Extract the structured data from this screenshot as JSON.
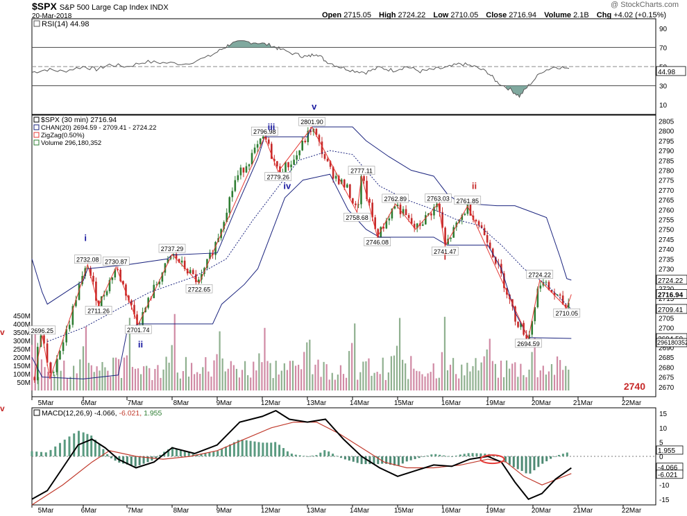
{
  "header": {
    "symbol": "$SPX",
    "name": "S&P 500 Large Cap Index",
    "exchange": "INDX",
    "date": "20-Mar-2018",
    "open_label": "Open",
    "open": "2715.05",
    "high_label": "High",
    "high": "2724.22",
    "low_label": "Low",
    "low": "2710.05",
    "close_label": "Close",
    "close": "2716.94",
    "volume_label": "Volume",
    "volume": "2.1B",
    "chg_label": "Chg",
    "chg": "+4.02 (+0.15%)",
    "brand": "@ StockCharts.com"
  },
  "rsi_panel": {
    "label": "RSI(14) 44.98",
    "current": "44.98",
    "ticks": [
      "90",
      "70",
      "50",
      "30",
      "10"
    ],
    "ylim": [
      0,
      100
    ],
    "overbought": 70,
    "oversold": 30
  },
  "price_panel": {
    "legend": {
      "title": "$SPX (30 min) 2716.94",
      "chan": "CHAN(20) 2694.59 - 2709.41 - 2724.22",
      "zigzag": "ZigZag(0.50%)",
      "volume": "Volume 296,180,352"
    },
    "price_ticks": [
      "2805",
      "2800",
      "2795",
      "2790",
      "2785",
      "2780",
      "2775",
      "2770",
      "2765",
      "2760",
      "2755",
      "2750",
      "2745",
      "2740",
      "2735",
      "2730",
      "2725",
      "2720",
      "2715",
      "2710",
      "2705",
      "2700",
      "2695",
      "2690",
      "2685",
      "2680",
      "2675",
      "2670"
    ],
    "ylim": [
      2665,
      2808
    ],
    "volume_ticks": [
      "450M",
      "400M",
      "350M",
      "300M",
      "250M",
      "200M",
      "150M",
      "100M",
      "50M"
    ],
    "right_labels": {
      "top": "2724.22",
      "close": "2716.94",
      "mid": "2709.41",
      "bottom": "2694.59",
      "volume": "296180352"
    },
    "annotation_2740": "2740",
    "side_marker": "v"
  },
  "macd_panel": {
    "label": "MACD(12,26,9) -4.066, -6.021, 1.955",
    "label_parts": {
      "name": "MACD(12,26,9)",
      "macd": "-4.066",
      "signal": "-6.021",
      "hist": "1.955"
    },
    "ticks": [
      "15",
      "10",
      "5",
      "0",
      "-5",
      "-10",
      "-15"
    ],
    "ylim": [
      -17,
      17
    ],
    "right_labels": {
      "hist": "1.955",
      "macd": "-4.066",
      "signal": "-6.021"
    },
    "side_marker": "v"
  },
  "x_axis": {
    "dates": [
      "5Mar",
      "6Mar",
      "7Mar",
      "8Mar",
      "9Mar",
      "12Mar",
      "13Mar",
      "14Mar",
      "15Mar",
      "16Mar",
      "19Mar",
      "20Mar",
      "21Mar",
      "22Mar"
    ]
  },
  "colors": {
    "up": "#2e7d32",
    "down": "#c62828",
    "channel": "#1a237e",
    "zigzag": "#e53935",
    "vol_up": "#8fb08f",
    "vol_down": "#d08aa4",
    "rsi_fill": "#6a9a8e",
    "wave_blue": "#1a1aa0",
    "wave_red": "#c62828"
  },
  "chart_data": {
    "type": "line",
    "title": "$SPX (30 min) 2716.94",
    "series": [
      {
        "name": "ZigZag(0.50%)",
        "values": [
          {
            "x": "5Mar",
            "y": 2675
          },
          {
            "x": "5Mar",
            "y": 2696.25
          },
          {
            "x": "5Mar",
            "y": 2674
          },
          {
            "x": "6Mar",
            "y": 2732.08
          },
          {
            "x": "6Mar",
            "y": 2711.26
          },
          {
            "x": "6Mar",
            "y": 2730.87
          },
          {
            "x": "7Mar",
            "y": 2701.74
          },
          {
            "x": "8Mar",
            "y": 2737.29
          },
          {
            "x": "8Mar",
            "y": 2722.65
          },
          {
            "x": "12Mar",
            "y": 2796.98
          },
          {
            "x": "12Mar",
            "y": 2779.26
          },
          {
            "x": "13Mar",
            "y": 2801.9
          },
          {
            "x": "14Mar",
            "y": 2758.68
          },
          {
            "x": "14Mar",
            "y": 2777.11
          },
          {
            "x": "14Mar",
            "y": 2746.08
          },
          {
            "x": "15Mar",
            "y": 2762.89
          },
          {
            "x": "15Mar",
            "y": 2750
          },
          {
            "x": "15Mar",
            "y": 2763.03
          },
          {
            "x": "16Mar",
            "y": 2741.47
          },
          {
            "x": "16Mar",
            "y": 2761.85
          },
          {
            "x": "20Mar",
            "y": 2694.59
          },
          {
            "x": "20Mar",
            "y": 2724.22
          },
          {
            "x": "20Mar",
            "y": 2710.05
          },
          {
            "x": "20Mar",
            "y": 2716.94
          }
        ]
      }
    ],
    "pivot_labels": [
      "2696.25",
      "2732.08",
      "2711.26",
      "2730.87",
      "2701.74",
      "2737.29",
      "2722.65",
      "2796.98",
      "2779.26",
      "2801.90",
      "2758.68",
      "2777.11",
      "2746.08",
      "2762.89",
      "2763.03",
      "2741.47",
      "2761.85",
      "2694.59",
      "2724.22",
      "2710.05"
    ],
    "wave_labels_blue": [
      "i",
      "ii",
      "iii",
      "iv",
      "v"
    ],
    "wave_labels_red": [
      "i",
      "ii"
    ],
    "ylim": [
      2665,
      2808
    ],
    "xlabel": "",
    "ylabel": ""
  }
}
